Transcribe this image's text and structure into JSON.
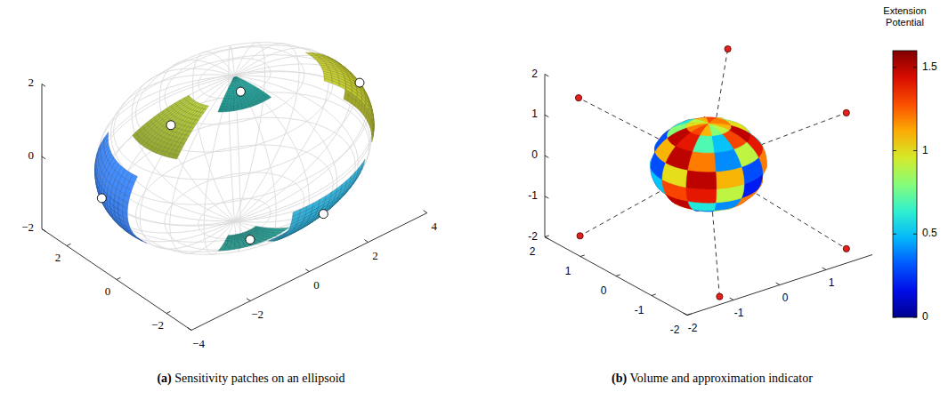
{
  "chart_data": [
    {
      "type": "surface3d",
      "title": "(a) Sensitivity patches on an ellipsoid",
      "radii": [
        4,
        3,
        2
      ],
      "xlim": [
        -4,
        4
      ],
      "xticks": [
        {
          "value": -4,
          "label": "−4"
        },
        {
          "value": -2,
          "label": "−2"
        },
        0,
        2,
        4
      ],
      "ylim": [
        -3,
        3
      ],
      "yticks": [
        {
          "value": -2,
          "label": "−2"
        },
        0,
        2
      ],
      "zlim": [
        -2,
        2
      ],
      "zticks": [
        {
          "value": -2,
          "label": "−2"
        },
        0,
        2
      ],
      "marker": "circle",
      "patches": [
        {
          "theta": 165,
          "phi": -5,
          "dtheta": 45,
          "dphi": 60,
          "color": "#3d7fe6"
        },
        {
          "theta": 185,
          "phi": 55,
          "dtheta": 40,
          "dphi": 30,
          "color": "#a8bd3a"
        },
        {
          "theta": 250,
          "phi": 78,
          "dtheta": 60,
          "dphi": 22,
          "color": "#26a8a0"
        },
        {
          "theta": 345,
          "phi": 20,
          "dtheta": 40,
          "dphi": 60,
          "color": "#b5bc2e"
        },
        {
          "theta": 285,
          "phi": -30,
          "dtheta": 45,
          "dphi": 50,
          "color": "#2f9fc4"
        },
        {
          "theta": 255,
          "phi": -68,
          "dtheta": 60,
          "dphi": 20,
          "color": "#2ba49a"
        }
      ]
    },
    {
      "type": "sphere3d",
      "title": "(b) Volume and approximation indicator",
      "radius": 1,
      "xlim": [
        -2,
        2
      ],
      "xticks": [
        -2,
        -1,
        0,
        1
      ],
      "ylim": [
        -2,
        2
      ],
      "yticks": [
        -2,
        -1,
        0,
        1,
        2
      ],
      "zlim": [
        -2,
        2
      ],
      "zticks": [
        -2,
        -1,
        0,
        1,
        2
      ],
      "color": "#e3201b",
      "marker": "circle",
      "line_style": "dashed",
      "points": {
        "x": [
          0.3,
          0.2,
          2.9,
          -2.7,
          -0.5,
          0.67
        ],
        "y": [
          -0.15,
          -0.05,
          -0.1,
          0.1,
          3,
          -3
        ],
        "z": [
          2.8,
          -3.3,
          0.24,
          -0.8,
          0.38,
          -0.88
        ]
      },
      "cells": [
        [
          1.2,
          1.3,
          1.1,
          0.9,
          1.0,
          1.2,
          1.3,
          1.1,
          0.8,
          0.9,
          1.1,
          1.2
        ],
        [
          0.9,
          1.4,
          1.5,
          0.6,
          0.8,
          1.5,
          1.4,
          0.7,
          0.5,
          1.3,
          1.5,
          1.0
        ],
        [
          0.4,
          1.2,
          1.5,
          1.3,
          0.3,
          1.1,
          1.5,
          1.2,
          0.4,
          0.9,
          1.4,
          0.6
        ],
        [
          0.2,
          0.8,
          1.4,
          1.5,
          0.6,
          0.3,
          1.0,
          1.5,
          1.1,
          0.3,
          1.2,
          0.5
        ],
        [
          0.3,
          0.9,
          1.5,
          1.2,
          0.2,
          0.5,
          1.3,
          1.4,
          0.9,
          0.2,
          1.1,
          0.6
        ],
        [
          0.8,
          1.4,
          1.3,
          0.5,
          0.7,
          1.4,
          1.5,
          0.6,
          0.4,
          1.2,
          1.5,
          1.0
        ],
        [
          1.3,
          1.5,
          0.9,
          0.4,
          1.2,
          1.5,
          1.1,
          0.3,
          0.9,
          1.5,
          1.3,
          1.4
        ],
        [
          1.1,
          1.2,
          1.0,
          0.9,
          1.1,
          1.2,
          1.0,
          0.8,
          1.0,
          1.2,
          1.1,
          1.0
        ]
      ],
      "colorbar": {
        "title": "Extension Potential",
        "range": [
          0,
          1.6
        ],
        "ticks": [
          0,
          0.5,
          1,
          1.5
        ]
      }
    }
  ]
}
